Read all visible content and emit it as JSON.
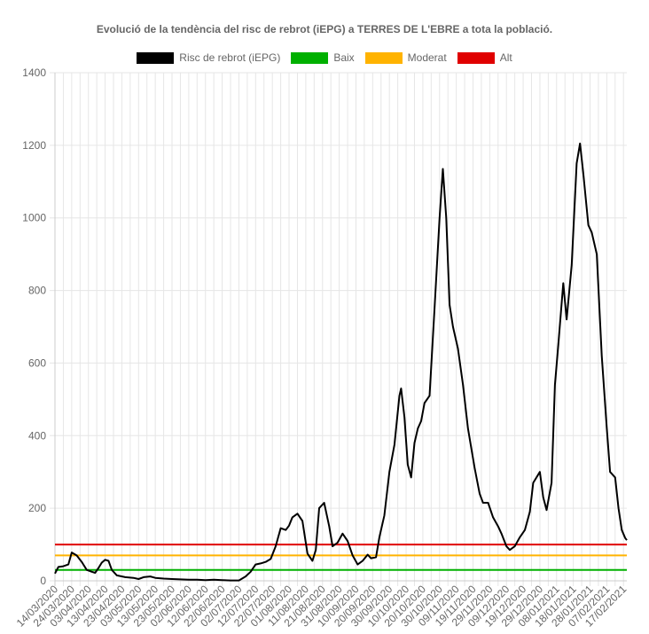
{
  "chart_data": {
    "type": "line",
    "title": "Evolució de la tendència del risc de rebrot (iEPG) a TERRES DE L'EBRE a tota la població.",
    "xlabel": "",
    "ylabel": "",
    "ylim": [
      0,
      1400
    ],
    "y_ticks": [
      0,
      200,
      400,
      600,
      800,
      1000,
      1200,
      1400
    ],
    "x_range": [
      "2020-03-14",
      "2021-02-19"
    ],
    "x_tick_labels": [
      "14/03/2020",
      "24/03/2020",
      "03/04/2020",
      "13/04/2020",
      "23/04/2020",
      "03/05/2020",
      "13/05/2020",
      "23/05/2020",
      "02/06/2020",
      "12/06/2020",
      "22/06/2020",
      "02/07/2020",
      "12/07/2020",
      "22/07/2020",
      "01/08/2020",
      "11/08/2020",
      "21/08/2020",
      "31/08/2020",
      "10/09/2020",
      "20/09/2020",
      "30/09/2020",
      "10/10/2020",
      "20/10/2020",
      "30/10/2020",
      "09/11/2020",
      "19/11/2020",
      "29/11/2020",
      "09/12/2020",
      "19/12/2020",
      "29/12/2020",
      "08/01/2021",
      "18/01/2021",
      "28/01/2021",
      "07/02/2021",
      "17/02/2021"
    ],
    "grid": true,
    "legend_position": "top",
    "series": [
      {
        "name": "Risc de rebrot (iEPG)",
        "color": "#000000",
        "points": [
          [
            "2020-03-14",
            20
          ],
          [
            "2020-03-16",
            38
          ],
          [
            "2020-03-19",
            40
          ],
          [
            "2020-03-22",
            45
          ],
          [
            "2020-03-24",
            78
          ],
          [
            "2020-03-27",
            70
          ],
          [
            "2020-03-30",
            52
          ],
          [
            "2020-04-02",
            30
          ],
          [
            "2020-04-05",
            25
          ],
          [
            "2020-04-07",
            22
          ],
          [
            "2020-04-09",
            35
          ],
          [
            "2020-04-11",
            50
          ],
          [
            "2020-04-13",
            58
          ],
          [
            "2020-04-15",
            55
          ],
          [
            "2020-04-17",
            30
          ],
          [
            "2020-04-20",
            15
          ],
          [
            "2020-04-25",
            10
          ],
          [
            "2020-04-30",
            8
          ],
          [
            "2020-05-03",
            5
          ],
          [
            "2020-05-06",
            10
          ],
          [
            "2020-05-10",
            12
          ],
          [
            "2020-05-13",
            8
          ],
          [
            "2020-05-18",
            6
          ],
          [
            "2020-05-23",
            5
          ],
          [
            "2020-05-28",
            4
          ],
          [
            "2020-06-02",
            3
          ],
          [
            "2020-06-07",
            3
          ],
          [
            "2020-06-12",
            2
          ],
          [
            "2020-06-17",
            3
          ],
          [
            "2020-06-22",
            2
          ],
          [
            "2020-06-27",
            1
          ],
          [
            "2020-07-02",
            1
          ],
          [
            "2020-07-06",
            12
          ],
          [
            "2020-07-09",
            25
          ],
          [
            "2020-07-12",
            45
          ],
          [
            "2020-07-15",
            48
          ],
          [
            "2020-07-18",
            52
          ],
          [
            "2020-07-21",
            60
          ],
          [
            "2020-07-24",
            95
          ],
          [
            "2020-07-27",
            145
          ],
          [
            "2020-07-30",
            140
          ],
          [
            "2020-08-01",
            152
          ],
          [
            "2020-08-03",
            175
          ],
          [
            "2020-08-06",
            185
          ],
          [
            "2020-08-09",
            165
          ],
          [
            "2020-08-12",
            75
          ],
          [
            "2020-08-15",
            55
          ],
          [
            "2020-08-17",
            85
          ],
          [
            "2020-08-19",
            200
          ],
          [
            "2020-08-22",
            215
          ],
          [
            "2020-08-25",
            150
          ],
          [
            "2020-08-27",
            95
          ],
          [
            "2020-08-30",
            105
          ],
          [
            "2020-09-02",
            130
          ],
          [
            "2020-09-05",
            110
          ],
          [
            "2020-09-08",
            70
          ],
          [
            "2020-09-11",
            45
          ],
          [
            "2020-09-14",
            55
          ],
          [
            "2020-09-17",
            72
          ],
          [
            "2020-09-19",
            62
          ],
          [
            "2020-09-22",
            65
          ],
          [
            "2020-09-24",
            120
          ],
          [
            "2020-09-27",
            180
          ],
          [
            "2020-09-30",
            300
          ],
          [
            "2020-10-03",
            375
          ],
          [
            "2020-10-06",
            510
          ],
          [
            "2020-10-07",
            530
          ],
          [
            "2020-10-09",
            450
          ],
          [
            "2020-10-11",
            320
          ],
          [
            "2020-10-13",
            285
          ],
          [
            "2020-10-15",
            380
          ],
          [
            "2020-10-17",
            420
          ],
          [
            "2020-10-19",
            440
          ],
          [
            "2020-10-21",
            490
          ],
          [
            "2020-10-24",
            510
          ],
          [
            "2020-10-27",
            750
          ],
          [
            "2020-10-30",
            1000
          ],
          [
            "2020-11-01",
            1135
          ],
          [
            "2020-11-03",
            1000
          ],
          [
            "2020-11-05",
            760
          ],
          [
            "2020-11-07",
            700
          ],
          [
            "2020-11-10",
            640
          ],
          [
            "2020-11-13",
            540
          ],
          [
            "2020-11-16",
            420
          ],
          [
            "2020-11-20",
            310
          ],
          [
            "2020-11-23",
            240
          ],
          [
            "2020-11-25",
            215
          ],
          [
            "2020-11-28",
            215
          ],
          [
            "2020-12-01",
            175
          ],
          [
            "2020-12-04",
            150
          ],
          [
            "2020-12-06",
            130
          ],
          [
            "2020-12-09",
            95
          ],
          [
            "2020-12-11",
            85
          ],
          [
            "2020-12-14",
            95
          ],
          [
            "2020-12-17",
            120
          ],
          [
            "2020-12-20",
            140
          ],
          [
            "2020-12-23",
            190
          ],
          [
            "2020-12-25",
            270
          ],
          [
            "2020-12-29",
            300
          ],
          [
            "2020-12-31",
            230
          ],
          [
            "2021-01-02",
            195
          ],
          [
            "2021-01-05",
            270
          ],
          [
            "2021-01-07",
            540
          ],
          [
            "2021-01-09",
            650
          ],
          [
            "2021-01-12",
            820
          ],
          [
            "2021-01-14",
            720
          ],
          [
            "2021-01-17",
            870
          ],
          [
            "2021-01-20",
            1150
          ],
          [
            "2021-01-22",
            1205
          ],
          [
            "2021-01-24",
            1120
          ],
          [
            "2021-01-27",
            980
          ],
          [
            "2021-01-29",
            960
          ],
          [
            "2021-02-01",
            900
          ],
          [
            "2021-02-04",
            620
          ],
          [
            "2021-02-07",
            420
          ],
          [
            "2021-02-09",
            300
          ],
          [
            "2021-02-12",
            285
          ],
          [
            "2021-02-14",
            200
          ],
          [
            "2021-02-16",
            140
          ],
          [
            "2021-02-18",
            118
          ],
          [
            "2021-02-19",
            112
          ]
        ]
      },
      {
        "name": "Baix",
        "color": "#00b000",
        "points": [
          [
            "2020-03-14",
            30
          ],
          [
            "2021-02-19",
            30
          ]
        ]
      },
      {
        "name": "Moderat",
        "color": "#ffb300",
        "points": [
          [
            "2020-03-14",
            70
          ],
          [
            "2021-02-19",
            70
          ]
        ]
      },
      {
        "name": "Alt",
        "color": "#e00000",
        "points": [
          [
            "2020-03-14",
            100
          ],
          [
            "2021-02-19",
            100
          ]
        ]
      }
    ]
  }
}
